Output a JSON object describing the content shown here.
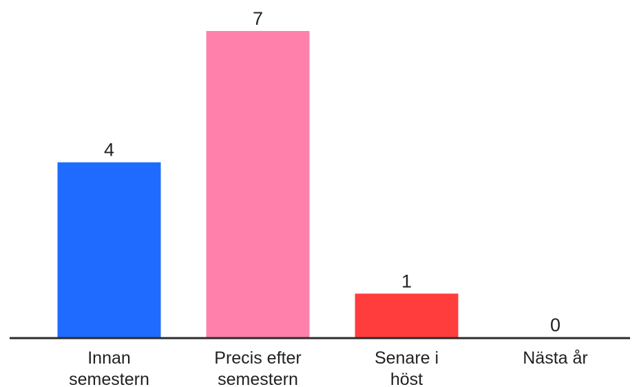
{
  "chart_data": {
    "type": "bar",
    "categories": [
      [
        "Innan",
        "semestern"
      ],
      [
        "Precis efter",
        "semestern"
      ],
      [
        "Senare i",
        "höst"
      ],
      [
        "Nästa år"
      ]
    ],
    "values": [
      4,
      7,
      1,
      0
    ],
    "colors": [
      "#1f6bff",
      "#ff80ab",
      "#ff3d3d",
      "#9e9e9e"
    ],
    "axis_color": "#2b2b2b",
    "ylim": [
      0,
      7.4
    ],
    "grid": false,
    "legend": "none",
    "data_labels": true
  }
}
